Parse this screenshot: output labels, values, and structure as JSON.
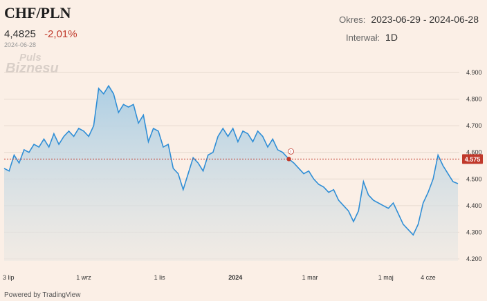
{
  "header": {
    "symbol": "CHF/PLN",
    "last_price": "4,4825",
    "change": "-2,01%",
    "date": "2024-06-28",
    "period_label": "Okres:",
    "period_value": "2023-06-29 - 2024-06-28",
    "interval_label": "Interwał:",
    "interval_value": "1D"
  },
  "watermark": {
    "line1": "Puls",
    "line2": "Biznesu"
  },
  "footer": {
    "credit": "Powered by TradingView"
  },
  "colors": {
    "line": "#2f8ed6",
    "fill_top": "#a9cde4",
    "fill_bottom": "#ebe8e3",
    "marker": "#c0392b",
    "price_badge": "#c0392b"
  },
  "chart_data": {
    "type": "area",
    "title": "CHF/PLN",
    "ylim": [
      4.2,
      4.92
    ],
    "y_ticks": [
      "4.200",
      "4.300",
      "4.400",
      "4.500",
      "4.600",
      "4.700",
      "4.800",
      "4.900"
    ],
    "y_tick_values": [
      4.2,
      4.3,
      4.4,
      4.5,
      4.6,
      4.7,
      4.8,
      4.9
    ],
    "x_ticks": [
      {
        "label": "3 lip",
        "date": "2023-07-03",
        "bold": false
      },
      {
        "label": "1 wrz",
        "date": "2023-09-01",
        "bold": false
      },
      {
        "label": "1 lis",
        "date": "2023-11-01",
        "bold": false
      },
      {
        "label": "2024",
        "date": "2024-01-01",
        "bold": true
      },
      {
        "label": "1 mar",
        "date": "2024-03-01",
        "bold": false
      },
      {
        "label": "1 maj",
        "date": "2024-05-01",
        "bold": false
      },
      {
        "label": "4 cze",
        "date": "2024-06-04",
        "bold": false
      }
    ],
    "reference_level": {
      "value": 4.575,
      "label": "4.575"
    },
    "marker": {
      "date": "2024-02-13",
      "value": 4.575,
      "label": "!"
    },
    "series": [
      {
        "points": [
          [
            "2023-06-29",
            4.54
          ],
          [
            "2023-07-03",
            4.53
          ],
          [
            "2023-07-07",
            4.59
          ],
          [
            "2023-07-11",
            4.56
          ],
          [
            "2023-07-15",
            4.61
          ],
          [
            "2023-07-19",
            4.6
          ],
          [
            "2023-07-23",
            4.63
          ],
          [
            "2023-07-27",
            4.62
          ],
          [
            "2023-07-31",
            4.65
          ],
          [
            "2023-08-04",
            4.62
          ],
          [
            "2023-08-08",
            4.67
          ],
          [
            "2023-08-12",
            4.63
          ],
          [
            "2023-08-16",
            4.66
          ],
          [
            "2023-08-20",
            4.68
          ],
          [
            "2023-08-24",
            4.66
          ],
          [
            "2023-08-28",
            4.69
          ],
          [
            "2023-09-01",
            4.68
          ],
          [
            "2023-09-05",
            4.66
          ],
          [
            "2023-09-09",
            4.7
          ],
          [
            "2023-09-13",
            4.84
          ],
          [
            "2023-09-17",
            4.82
          ],
          [
            "2023-09-21",
            4.85
          ],
          [
            "2023-09-25",
            4.82
          ],
          [
            "2023-09-29",
            4.75
          ],
          [
            "2023-10-03",
            4.78
          ],
          [
            "2023-10-07",
            4.77
          ],
          [
            "2023-10-11",
            4.78
          ],
          [
            "2023-10-15",
            4.71
          ],
          [
            "2023-10-19",
            4.74
          ],
          [
            "2023-10-23",
            4.64
          ],
          [
            "2023-10-27",
            4.69
          ],
          [
            "2023-10-31",
            4.68
          ],
          [
            "2023-11-04",
            4.62
          ],
          [
            "2023-11-08",
            4.63
          ],
          [
            "2023-11-12",
            4.54
          ],
          [
            "2023-11-16",
            4.52
          ],
          [
            "2023-11-20",
            4.46
          ],
          [
            "2023-11-24",
            4.52
          ],
          [
            "2023-11-28",
            4.58
          ],
          [
            "2023-12-02",
            4.56
          ],
          [
            "2023-12-06",
            4.53
          ],
          [
            "2023-12-10",
            4.59
          ],
          [
            "2023-12-14",
            4.6
          ],
          [
            "2023-12-18",
            4.66
          ],
          [
            "2023-12-22",
            4.69
          ],
          [
            "2023-12-26",
            4.66
          ],
          [
            "2023-12-30",
            4.69
          ],
          [
            "2024-01-03",
            4.64
          ],
          [
            "2024-01-07",
            4.68
          ],
          [
            "2024-01-11",
            4.67
          ],
          [
            "2024-01-15",
            4.64
          ],
          [
            "2024-01-19",
            4.68
          ],
          [
            "2024-01-23",
            4.66
          ],
          [
            "2024-01-27",
            4.62
          ],
          [
            "2024-01-31",
            4.65
          ],
          [
            "2024-02-04",
            4.61
          ],
          [
            "2024-02-08",
            4.6
          ],
          [
            "2024-02-13",
            4.575
          ],
          [
            "2024-02-17",
            4.56
          ],
          [
            "2024-02-21",
            4.54
          ],
          [
            "2024-02-25",
            4.52
          ],
          [
            "2024-02-29",
            4.53
          ],
          [
            "2024-03-04",
            4.5
          ],
          [
            "2024-03-08",
            4.48
          ],
          [
            "2024-03-12",
            4.47
          ],
          [
            "2024-03-16",
            4.45
          ],
          [
            "2024-03-20",
            4.46
          ],
          [
            "2024-03-24",
            4.42
          ],
          [
            "2024-03-28",
            4.4
          ],
          [
            "2024-04-01",
            4.38
          ],
          [
            "2024-04-05",
            4.34
          ],
          [
            "2024-04-09",
            4.38
          ],
          [
            "2024-04-13",
            4.49
          ],
          [
            "2024-04-17",
            4.44
          ],
          [
            "2024-04-21",
            4.42
          ],
          [
            "2024-04-25",
            4.41
          ],
          [
            "2024-04-29",
            4.4
          ],
          [
            "2024-05-03",
            4.39
          ],
          [
            "2024-05-07",
            4.41
          ],
          [
            "2024-05-11",
            4.37
          ],
          [
            "2024-05-15",
            4.33
          ],
          [
            "2024-05-19",
            4.31
          ],
          [
            "2024-05-23",
            4.29
          ],
          [
            "2024-05-27",
            4.33
          ],
          [
            "2024-05-31",
            4.41
          ],
          [
            "2024-06-04",
            4.45
          ],
          [
            "2024-06-08",
            4.5
          ],
          [
            "2024-06-12",
            4.59
          ],
          [
            "2024-06-16",
            4.55
          ],
          [
            "2024-06-20",
            4.52
          ],
          [
            "2024-06-24",
            4.49
          ],
          [
            "2024-06-28",
            4.4825
          ]
        ]
      }
    ]
  }
}
